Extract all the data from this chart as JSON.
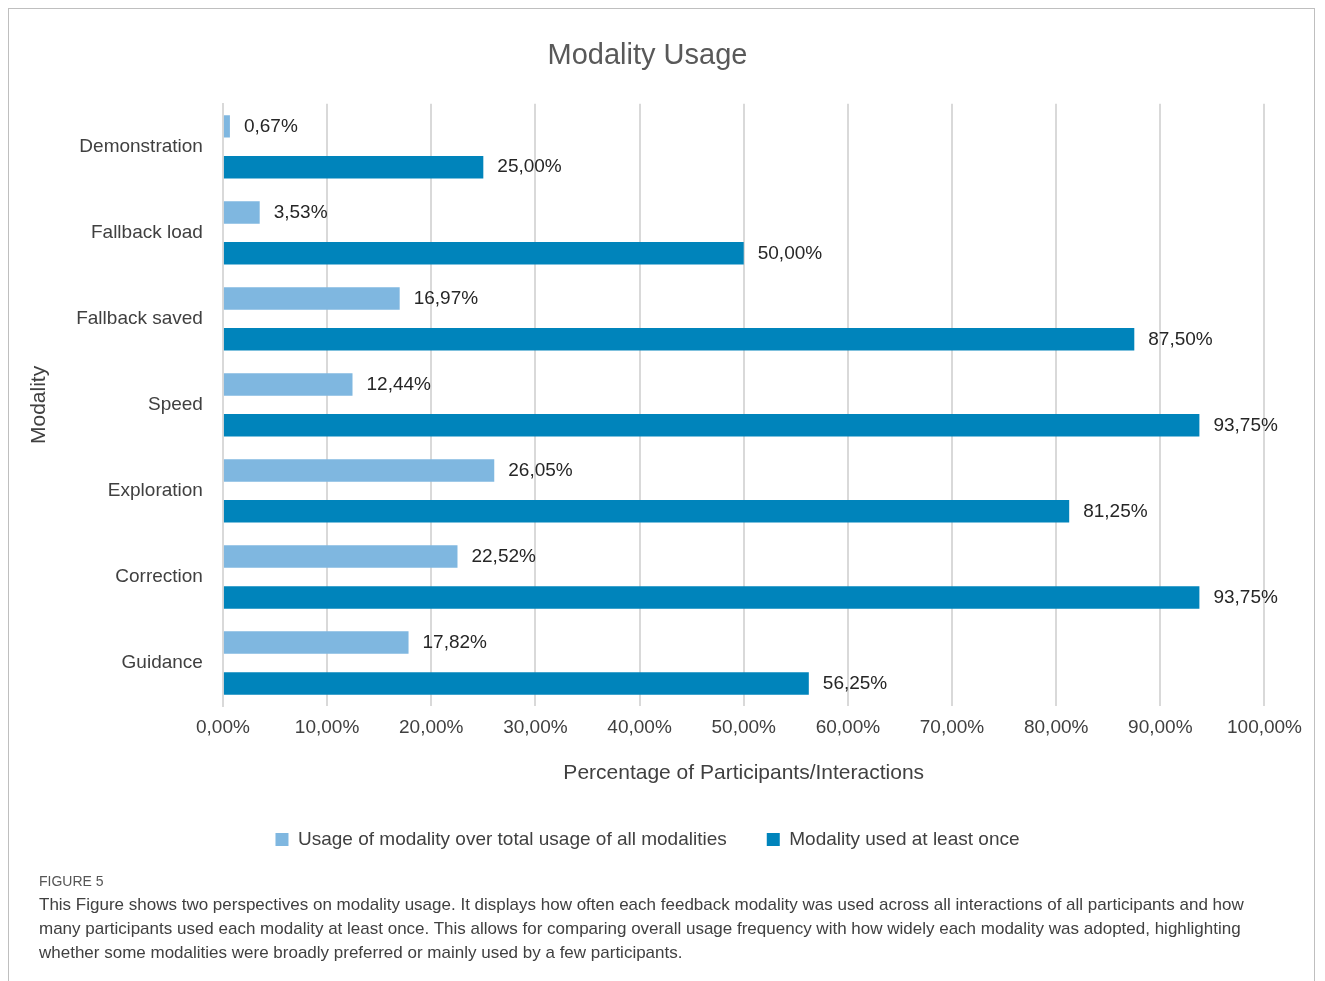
{
  "chart_data": {
    "type": "bar",
    "orientation": "horizontal",
    "title": "Modality Usage",
    "xlabel": "Percentage of Participants/Interactions",
    "ylabel": "Modality",
    "categories": [
      "Demonstration",
      "Fallback load",
      "Fallback saved",
      "Speed",
      "Exploration",
      "Correction",
      "Guidance"
    ],
    "series": [
      {
        "name": "Usage of modality over total usage of all modalities",
        "color": "#7fb7e0",
        "values": [
          0.67,
          3.53,
          16.97,
          12.44,
          26.05,
          22.52,
          17.82
        ],
        "value_labels": [
          "0,67%",
          "3,53%",
          "16,97%",
          "12,44%",
          "26,05%",
          "22,52%",
          "17,82%"
        ]
      },
      {
        "name": "Modality used at least once",
        "color": "#0084bb",
        "values": [
          25,
          50,
          87.5,
          93.75,
          81.25,
          93.75,
          56.25
        ],
        "value_labels": [
          "25,00%",
          "50,00%",
          "87,50%",
          "93,75%",
          "81,25%",
          "93,75%",
          "56,25%"
        ]
      }
    ],
    "xlim": [
      0,
      100
    ],
    "xticks": [
      {
        "value": 0,
        "label": "0,00%"
      },
      {
        "value": 10,
        "label": "10,00%"
      },
      {
        "value": 20,
        "label": "20,00%"
      },
      {
        "value": 30,
        "label": "30,00%"
      },
      {
        "value": 40,
        "label": "40,00%"
      },
      {
        "value": 50,
        "label": "50,00%"
      },
      {
        "value": 60,
        "label": "60,00%"
      },
      {
        "value": 70,
        "label": "70,00%"
      },
      {
        "value": 80,
        "label": "80,00%"
      },
      {
        "value": 90,
        "label": "90,00%"
      },
      {
        "value": 100,
        "label": "100,00%"
      }
    ],
    "grid": "x",
    "legend": "bottom",
    "annotations": [
      "FIGURE 5",
      "This Figure shows two perspectives on modality usage. It displays how often each feedback modality was used across all interactions of all participants and how many participants used each modality at least once. This allows for comparing overall usage frequency with how widely each modality was adopted, highlighting whether some modalities were broadly preferred or mainly used by a few participants."
    ]
  }
}
